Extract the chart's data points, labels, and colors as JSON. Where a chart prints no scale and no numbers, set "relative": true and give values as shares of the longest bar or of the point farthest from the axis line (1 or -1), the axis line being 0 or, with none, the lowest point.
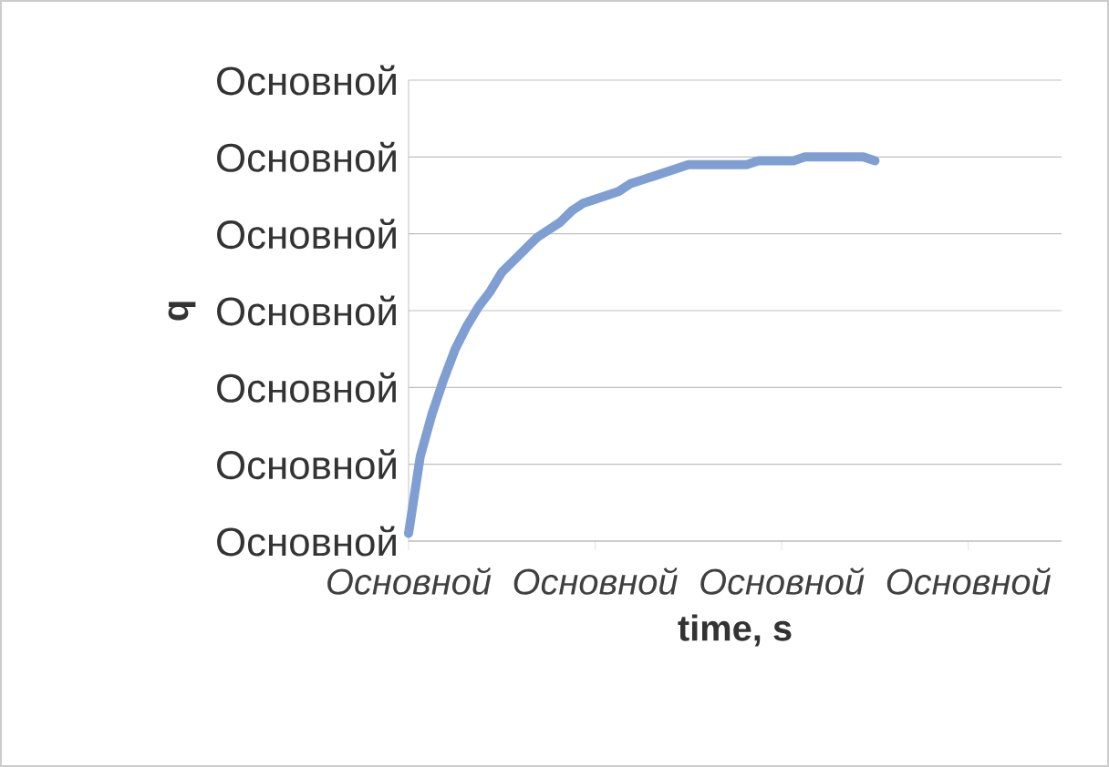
{
  "chart_data": {
    "type": "line",
    "xlabel": "time, s",
    "ylabel": "q",
    "relative": true,
    "categories": [
      "Основной",
      null,
      null,
      null,
      null,
      null,
      null,
      null,
      null,
      null,
      null,
      null,
      null,
      null,
      null,
      null,
      "Основной",
      null,
      null,
      null,
      null,
      null,
      null,
      null,
      null,
      null,
      null,
      null,
      null,
      null,
      null,
      null,
      "Основной",
      null,
      null,
      null,
      null,
      null,
      null,
      null,
      null,
      null,
      null,
      null,
      null,
      null,
      null,
      null,
      "Основной",
      null,
      null,
      null,
      null,
      null,
      null,
      null,
      null
    ],
    "series": [
      {
        "color": "#7f9fd3",
        "values": [
          0.02,
          0.22,
          0.33,
          0.42,
          0.5,
          0.56,
          0.61,
          0.65,
          0.7,
          0.73,
          0.76,
          0.79,
          0.81,
          0.83,
          0.86,
          0.88,
          0.89,
          0.9,
          0.91,
          0.93,
          0.94,
          0.95,
          0.96,
          0.97,
          0.98,
          0.98,
          0.98,
          0.98,
          0.98,
          0.98,
          0.99,
          0.99,
          0.99,
          0.99,
          1.0,
          1.0,
          1.0,
          1.0,
          1.0,
          1.0,
          0.99,
          null,
          null,
          null,
          null,
          null,
          null,
          null,
          null,
          null,
          null,
          null,
          null,
          null,
          null,
          null,
          null
        ]
      }
    ],
    "annotations": [
      "Основной",
      "Основной",
      "Основной",
      "Основной",
      "Основной",
      "Основной",
      "Основной"
    ],
    "grid": "y",
    "marker": "none",
    "line_style": "solid"
  }
}
